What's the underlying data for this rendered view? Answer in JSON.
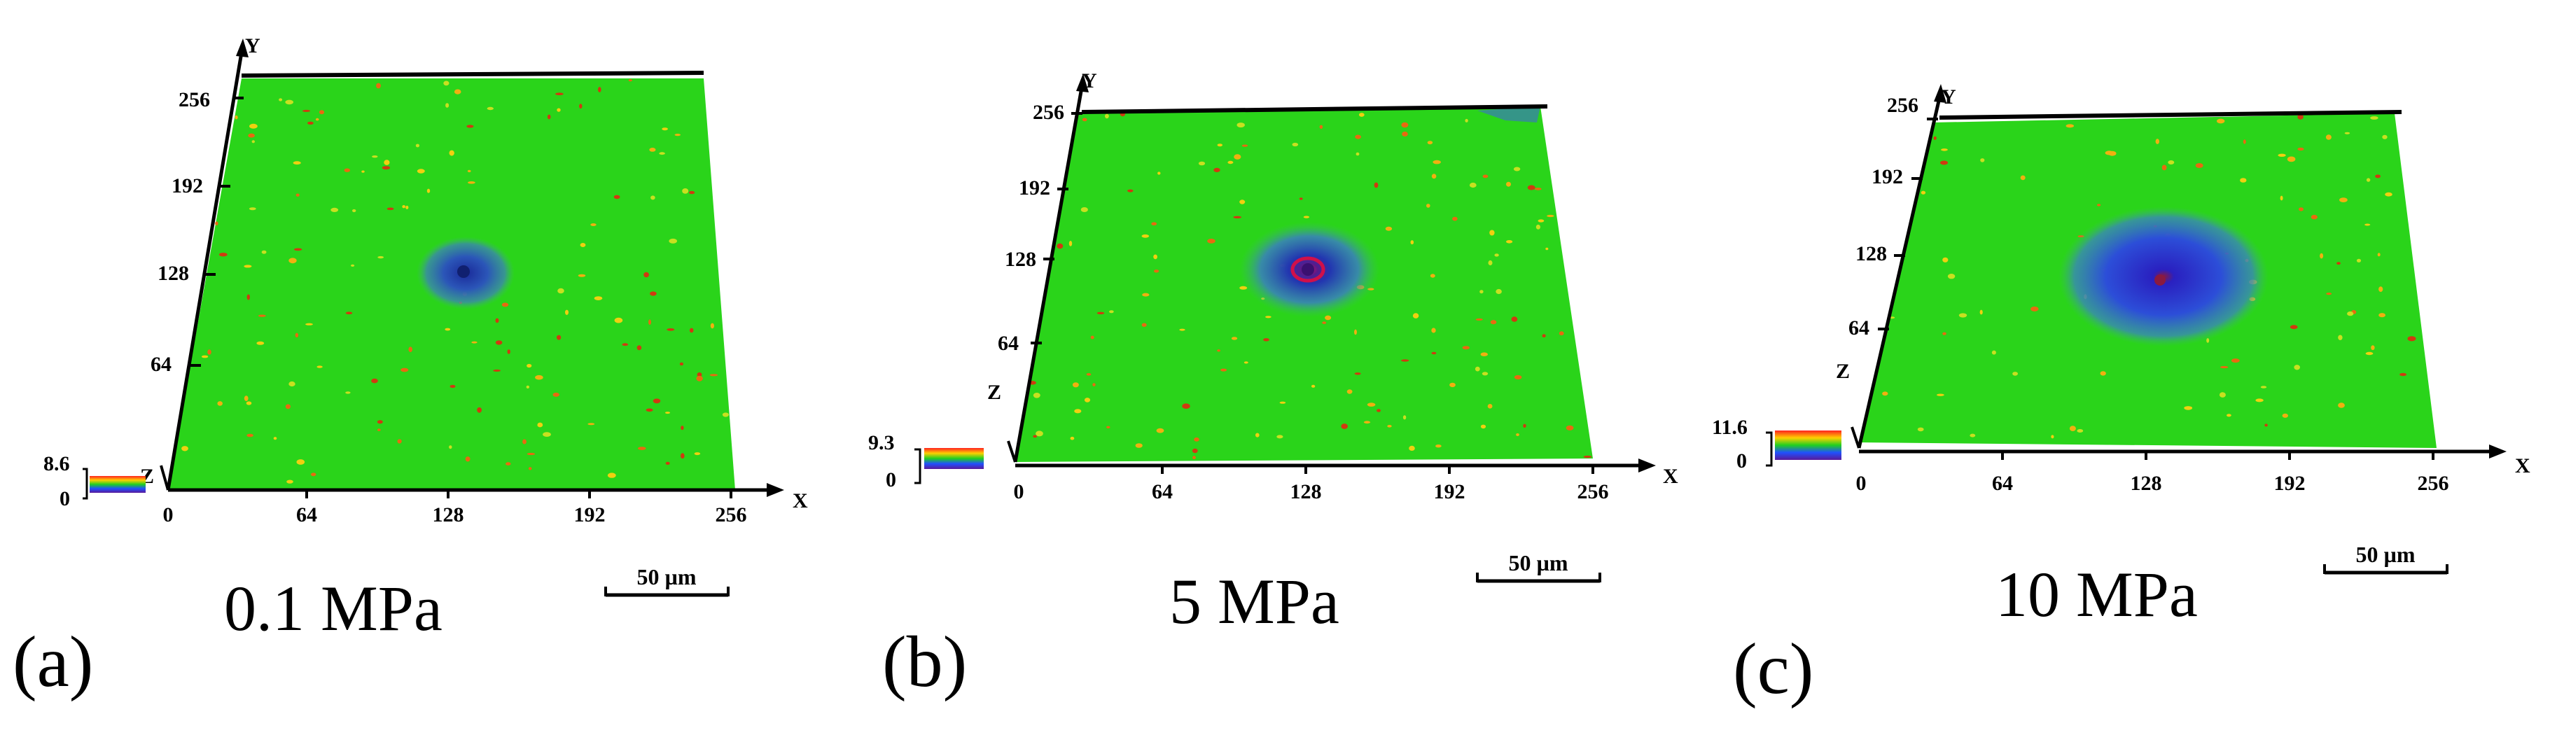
{
  "figure": {
    "background": "#ffffff",
    "surface_color": "#2ad41a",
    "panels": [
      {
        "letter": "(a)",
        "pressure": "0.1 MPa",
        "scale_bar": "50 µm",
        "colorbar_max": "8.6",
        "colorbar_min": "0",
        "x_ticks": [
          "0",
          "64",
          "128",
          "192",
          "256"
        ],
        "y_ticks": [
          "64",
          "128",
          "192",
          "256"
        ],
        "axis_x": "X",
        "axis_y": "Y",
        "axis_z": "Z",
        "crater_level": "small"
      },
      {
        "letter": "(b)",
        "pressure": "5 MPa",
        "scale_bar": "50 µm",
        "colorbar_max": "9.3",
        "colorbar_min": "0",
        "x_ticks": [
          "0",
          "64",
          "128",
          "192",
          "256"
        ],
        "y_ticks": [
          "64",
          "128",
          "192",
          "256"
        ],
        "axis_x": "X",
        "axis_y": "Y",
        "axis_z": "Z",
        "crater_level": "medium"
      },
      {
        "letter": "(c)",
        "pressure": "10 MPa",
        "scale_bar": "50 µm",
        "colorbar_max": "11.6",
        "colorbar_min": "0",
        "x_ticks": [
          "0",
          "64",
          "128",
          "192",
          "256"
        ],
        "y_ticks": [
          "64",
          "128",
          "192",
          "256"
        ],
        "axis_x": "X",
        "axis_y": "Y",
        "axis_z": "Z",
        "crater_level": "large"
      }
    ]
  }
}
